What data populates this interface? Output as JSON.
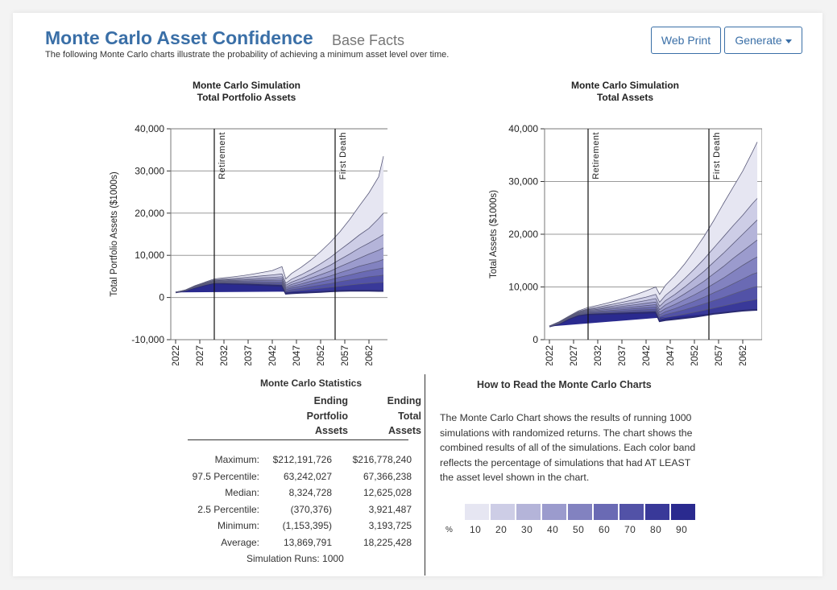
{
  "header": {
    "title": "Monte Carlo Asset Confidence",
    "subtitle": "Base Facts",
    "description": "The following Monte Carlo charts illustrate the probability of achieving a minimum asset level over time."
  },
  "toolbar": {
    "web_print_label": "Web Print",
    "generate_label": "Generate"
  },
  "colors": {
    "bands": [
      "#e6e6f2",
      "#cdcde6",
      "#b4b4d9",
      "#9b9bcd",
      "#8282c0",
      "#6a6ab4",
      "#5252a7",
      "#393999",
      "#2a2a8f"
    ],
    "title": "#3a6fa7"
  },
  "chart_data": [
    {
      "type": "area",
      "title": "Monte Carlo Simulation\nTotal Portfolio Assets",
      "title_lines": [
        "Monte Carlo Simulation",
        "Total Portfolio Assets"
      ],
      "ylabel": "Total Portfolio Assets ($1000s)",
      "ylim": [
        -10000,
        40000
      ],
      "yticks": [
        -10000,
        0,
        10000,
        20000,
        30000,
        40000
      ],
      "ytick_labels": [
        "-10,000",
        "0",
        "10,000",
        "20,000",
        "30,000",
        "40,000"
      ],
      "xlim": [
        2021,
        2066
      ],
      "xticks": [
        2022,
        2027,
        2032,
        2037,
        2042,
        2047,
        2052,
        2057,
        2062
      ],
      "grid": true,
      "vlines": [
        {
          "x": 2030,
          "label": "Retirement"
        },
        {
          "x": 2055,
          "label": "First Death"
        }
      ],
      "x": [
        2022,
        2024,
        2026,
        2028,
        2030,
        2032,
        2034,
        2036,
        2038,
        2040,
        2042,
        2044,
        2044.8,
        2046,
        2048,
        2050,
        2052,
        2054,
        2056,
        2058,
        2060,
        2062,
        2064,
        2065
      ],
      "series": [
        {
          "name": "90",
          "values": [
            1200,
            1600,
            2300,
            2900,
            3400,
            3300,
            3200,
            3150,
            3050,
            2950,
            2850,
            2750,
            900,
            1000,
            1100,
            1200,
            1300,
            1450,
            1550,
            1600,
            1600,
            1600,
            1550,
            1550
          ]
        },
        {
          "name": "80",
          "values": [
            1200,
            1620,
            2350,
            2980,
            3500,
            3450,
            3400,
            3350,
            3280,
            3200,
            3130,
            3050,
            1250,
            1450,
            1700,
            1950,
            2200,
            2450,
            2700,
            2950,
            3200,
            3400,
            3550,
            3600
          ]
        },
        {
          "name": "70",
          "values": [
            1200,
            1640,
            2400,
            3050,
            3600,
            3580,
            3560,
            3540,
            3500,
            3450,
            3400,
            3350,
            1550,
            1850,
            2200,
            2600,
            2950,
            3300,
            3750,
            4150,
            4500,
            4900,
            5150,
            5300
          ]
        },
        {
          "name": "60",
          "values": [
            1250,
            1660,
            2450,
            3120,
            3700,
            3720,
            3740,
            3740,
            3740,
            3720,
            3700,
            3680,
            1850,
            2250,
            2700,
            3200,
            3700,
            4200,
            4800,
            5350,
            5900,
            6400,
            6800,
            7000
          ]
        },
        {
          "name": "50",
          "values": [
            1250,
            1680,
            2500,
            3200,
            3800,
            3850,
            3900,
            3940,
            3970,
            3990,
            4000,
            4000,
            2150,
            2650,
            3200,
            3850,
            4450,
            5100,
            5900,
            6600,
            7400,
            8000,
            8600,
            9000
          ]
        },
        {
          "name": "40",
          "values": [
            1250,
            1700,
            2550,
            3280,
            3920,
            4000,
            4080,
            4150,
            4230,
            4290,
            4350,
            4400,
            2500,
            3100,
            3800,
            4600,
            5400,
            6250,
            7300,
            8300,
            9300,
            10300,
            11200,
            11800
          ]
        },
        {
          "name": "30",
          "values": [
            1250,
            1720,
            2620,
            3370,
            4050,
            4160,
            4280,
            4400,
            4530,
            4650,
            4780,
            4900,
            2900,
            3650,
            4500,
            5500,
            6550,
            7650,
            9000,
            10300,
            11700,
            12900,
            14200,
            14900
          ]
        },
        {
          "name": "20",
          "values": [
            1250,
            1750,
            2700,
            3470,
            4200,
            4360,
            4530,
            4720,
            4920,
            5130,
            5340,
            5600,
            3400,
            4350,
            5400,
            6600,
            8000,
            9500,
            11300,
            13000,
            14800,
            16400,
            18700,
            20000
          ]
        },
        {
          "name": "10",
          "values": [
            1250,
            1800,
            2800,
            3600,
            4400,
            4650,
            4900,
            5200,
            5550,
            5950,
            6400,
            7300,
            4400,
            5700,
            7200,
            8900,
            10900,
            13100,
            15600,
            18500,
            21700,
            24800,
            28600,
            33500
          ]
        }
      ]
    },
    {
      "type": "area",
      "title": "Monte Carlo Simulation\nTotal Assets",
      "title_lines": [
        "Monte Carlo Simulation",
        "Total Assets"
      ],
      "ylabel": "Total Assets ($1000s)",
      "ylim": [
        0,
        40000
      ],
      "yticks": [
        0,
        10000,
        20000,
        30000,
        40000
      ],
      "ytick_labels": [
        "0",
        "10,000",
        "20,000",
        "30,000",
        "40,000"
      ],
      "xlim": [
        2021,
        2066
      ],
      "xticks": [
        2022,
        2027,
        2032,
        2037,
        2042,
        2047,
        2052,
        2057,
        2062
      ],
      "grid": true,
      "vlines": [
        {
          "x": 2030,
          "label": "Retirement"
        },
        {
          "x": 2055,
          "label": "First Death"
        }
      ],
      "x": [
        2022,
        2024,
        2026,
        2028,
        2030,
        2032,
        2034,
        2036,
        2038,
        2040,
        2042,
        2044,
        2044.8,
        2046,
        2048,
        2050,
        2052,
        2054,
        2056,
        2058,
        2060,
        2062,
        2064,
        2065
      ],
      "series": [
        {
          "name": "90",
          "values": [
            2500,
            3000,
            3900,
            4600,
            4800,
            4850,
            4900,
            4950,
            5000,
            5050,
            5100,
            5150,
            3500,
            3700,
            3900,
            4100,
            4300,
            4600,
            4900,
            5100,
            5300,
            5500,
            5600,
            5650
          ]
        },
        {
          "name": "80",
          "values": [
            2500,
            3050,
            4000,
            4700,
            4950,
            5020,
            5090,
            5160,
            5230,
            5300,
            5370,
            5450,
            3900,
            4200,
            4500,
            4850,
            5200,
            5600,
            6000,
            6400,
            6800,
            7200,
            7500,
            7700
          ]
        },
        {
          "name": "70",
          "values": [
            2500,
            3100,
            4050,
            4800,
            5100,
            5200,
            5300,
            5400,
            5500,
            5600,
            5700,
            5800,
            4300,
            4750,
            5200,
            5700,
            6250,
            6800,
            7400,
            8000,
            8650,
            9300,
            9900,
            10100
          ]
        },
        {
          "name": "60",
          "values": [
            2550,
            3150,
            4100,
            4900,
            5250,
            5380,
            5510,
            5640,
            5780,
            5920,
            6060,
            6200,
            4700,
            5300,
            5900,
            6600,
            7300,
            8050,
            8900,
            9700,
            10600,
            11500,
            12400,
            12700
          ]
        },
        {
          "name": "50",
          "values": [
            2550,
            3200,
            4150,
            5000,
            5400,
            5570,
            5740,
            5920,
            6100,
            6280,
            6460,
            6650,
            5200,
            5900,
            6700,
            7600,
            8500,
            9500,
            10600,
            11700,
            12900,
            14100,
            15200,
            15700
          ]
        },
        {
          "name": "40",
          "values": [
            2550,
            3250,
            4200,
            5100,
            5550,
            5760,
            5980,
            6200,
            6430,
            6660,
            6900,
            7150,
            5700,
            6600,
            7600,
            8700,
            9900,
            11100,
            12500,
            13900,
            15400,
            16800,
            18200,
            18900
          ]
        },
        {
          "name": "30",
          "values": [
            2550,
            3300,
            4280,
            5200,
            5700,
            5960,
            6230,
            6510,
            6800,
            7100,
            7420,
            7800,
            6300,
            7400,
            8600,
            10000,
            11500,
            13000,
            14700,
            16400,
            18200,
            20000,
            21800,
            22700
          ]
        },
        {
          "name": "20",
          "values": [
            2600,
            3350,
            4350,
            5300,
            5850,
            6180,
            6520,
            6880,
            7260,
            7660,
            8080,
            8600,
            7100,
            8400,
            9900,
            11600,
            13400,
            15300,
            17400,
            19500,
            21600,
            23600,
            25800,
            26800
          ]
        },
        {
          "name": "10",
          "values": [
            2600,
            3400,
            4450,
            5450,
            6100,
            6500,
            6950,
            7450,
            8000,
            8600,
            9250,
            10000,
            8600,
            10300,
            12200,
            14400,
            16900,
            19600,
            22600,
            25800,
            28900,
            32000,
            35600,
            37500
          ]
        }
      ]
    }
  ],
  "stats": {
    "title": "Monte Carlo Statistics",
    "col1_lines": [
      "Ending",
      "Portfolio",
      "Assets"
    ],
    "col2_lines": [
      "Ending",
      "Total",
      "Assets"
    ],
    "rows": [
      {
        "label": "Maximum:",
        "v1": "$212,191,726",
        "v2": "$216,778,240"
      },
      {
        "label": "97.5 Percentile:",
        "v1": "63,242,027",
        "v2": "67,366,238"
      },
      {
        "label": "Median:",
        "v1": "8,324,728",
        "v2": "12,625,028"
      },
      {
        "label": "2.5 Percentile:",
        "v1": "(370,376)",
        "v2": "3,921,487"
      },
      {
        "label": "Minimum:",
        "v1": "(1,153,395)",
        "v2": "3,193,725"
      },
      {
        "label": "Average:",
        "v1": "13,869,791",
        "v2": "18,225,428"
      }
    ],
    "runs": "Simulation Runs: 1000"
  },
  "howto": {
    "title": "How to Read the Monte Carlo Charts",
    "text": "The Monte Carlo Chart shows the results of running 1000 simulations with randomized returns. The chart shows the combined results of all of the simulations. Each color band reflects the percentage of simulations that had AT LEAST the asset level shown in the chart."
  },
  "legend": {
    "percent_symbol": "%",
    "labels": [
      "10",
      "20",
      "30",
      "40",
      "50",
      "60",
      "70",
      "80",
      "90"
    ]
  }
}
